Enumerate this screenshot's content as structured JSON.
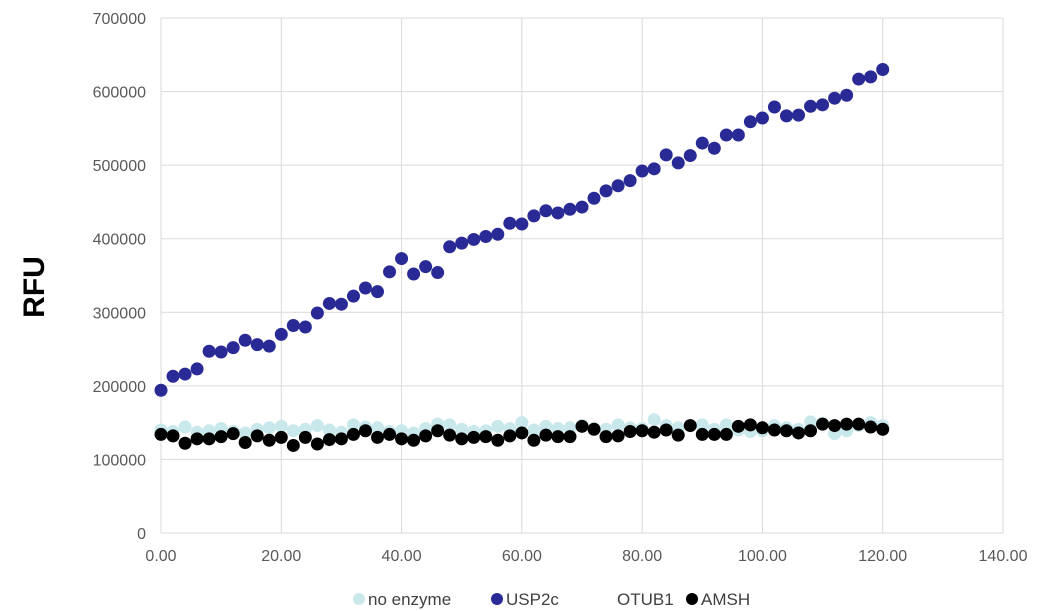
{
  "chart_data": {
    "type": "scatter",
    "title": "",
    "xlabel": "",
    "ylabel": "RFU",
    "xlim": [
      0,
      140
    ],
    "ylim": [
      0,
      700000
    ],
    "x_ticks": [
      "0.00",
      "20.00",
      "40.00",
      "60.00",
      "80.00",
      "100.00",
      "120.00",
      "140.00"
    ],
    "y_ticks": [
      "0",
      "100000",
      "200000",
      "300000",
      "400000",
      "500000",
      "600000",
      "700000"
    ],
    "grid": true,
    "legend_position": "bottom",
    "x": [
      0,
      2,
      4,
      6,
      8,
      10,
      12,
      14,
      16,
      18,
      20,
      22,
      24,
      26,
      28,
      30,
      32,
      34,
      36,
      38,
      40,
      42,
      44,
      46,
      48,
      50,
      52,
      54,
      56,
      58,
      60,
      62,
      64,
      66,
      68,
      70,
      72,
      74,
      76,
      78,
      80,
      82,
      84,
      86,
      88,
      90,
      92,
      94,
      96,
      98,
      100,
      102,
      104,
      106,
      108,
      110,
      112,
      114,
      116,
      118,
      120
    ],
    "series": [
      {
        "name": "no enzyme",
        "color": "#c9e8ec",
        "values": [
          140000,
          138000,
          144000,
          137000,
          139000,
          142000,
          138000,
          136000,
          141000,
          143000,
          145000,
          139000,
          141000,
          146000,
          140000,
          137000,
          147000,
          144000,
          143000,
          138000,
          139000,
          136000,
          142000,
          148000,
          147000,
          141000,
          138000,
          139000,
          145000,
          142000,
          150000,
          140000,
          145000,
          142000,
          143000,
          146000,
          142000,
          141000,
          147000,
          143000,
          142000,
          154000,
          146000,
          143000,
          146000,
          147000,
          141000,
          147000,
          140000,
          138000,
          139000,
          146000,
          143000,
          141000,
          151000,
          149000,
          135000,
          139000,
          146000,
          150000,
          146000
        ]
      },
      {
        "name": "USP2c",
        "color": "#2a2a96",
        "values": [
          194000,
          213000,
          216000,
          223000,
          247000,
          246000,
          252000,
          262000,
          256000,
          254000,
          270000,
          282000,
          280000,
          299000,
          312000,
          311000,
          322000,
          333000,
          328000,
          355000,
          373000,
          352000,
          362000,
          354000,
          389000,
          394000,
          399000,
          403000,
          406000,
          421000,
          420000,
          431000,
          438000,
          435000,
          440000,
          443000,
          455000,
          465000,
          472000,
          479000,
          492000,
          495000,
          514000,
          503000,
          513000,
          530000,
          523000,
          541000,
          541000,
          559000,
          564000,
          579000,
          567000,
          568000,
          580000,
          582000,
          591000,
          595000,
          617000,
          620000,
          630000
        ]
      },
      {
        "name": "OTUB1",
        "color": "#ffffff",
        "values": []
      },
      {
        "name": "AMSH",
        "color": "#000000",
        "values": [
          134000,
          132000,
          122000,
          128000,
          128000,
          131000,
          135000,
          123000,
          132000,
          126000,
          130000,
          119000,
          130000,
          121000,
          127000,
          128000,
          134000,
          139000,
          130000,
          134000,
          128000,
          126000,
          132000,
          139000,
          133000,
          128000,
          130000,
          131000,
          126000,
          132000,
          136000,
          126000,
          133000,
          131000,
          131000,
          145000,
          141000,
          131000,
          132000,
          138000,
          139000,
          137000,
          140000,
          133000,
          146000,
          134000,
          134000,
          134000,
          145000,
          147000,
          143000,
          140000,
          139000,
          136000,
          139000,
          148000,
          146000,
          148000,
          148000,
          144000,
          141000
        ]
      }
    ]
  }
}
